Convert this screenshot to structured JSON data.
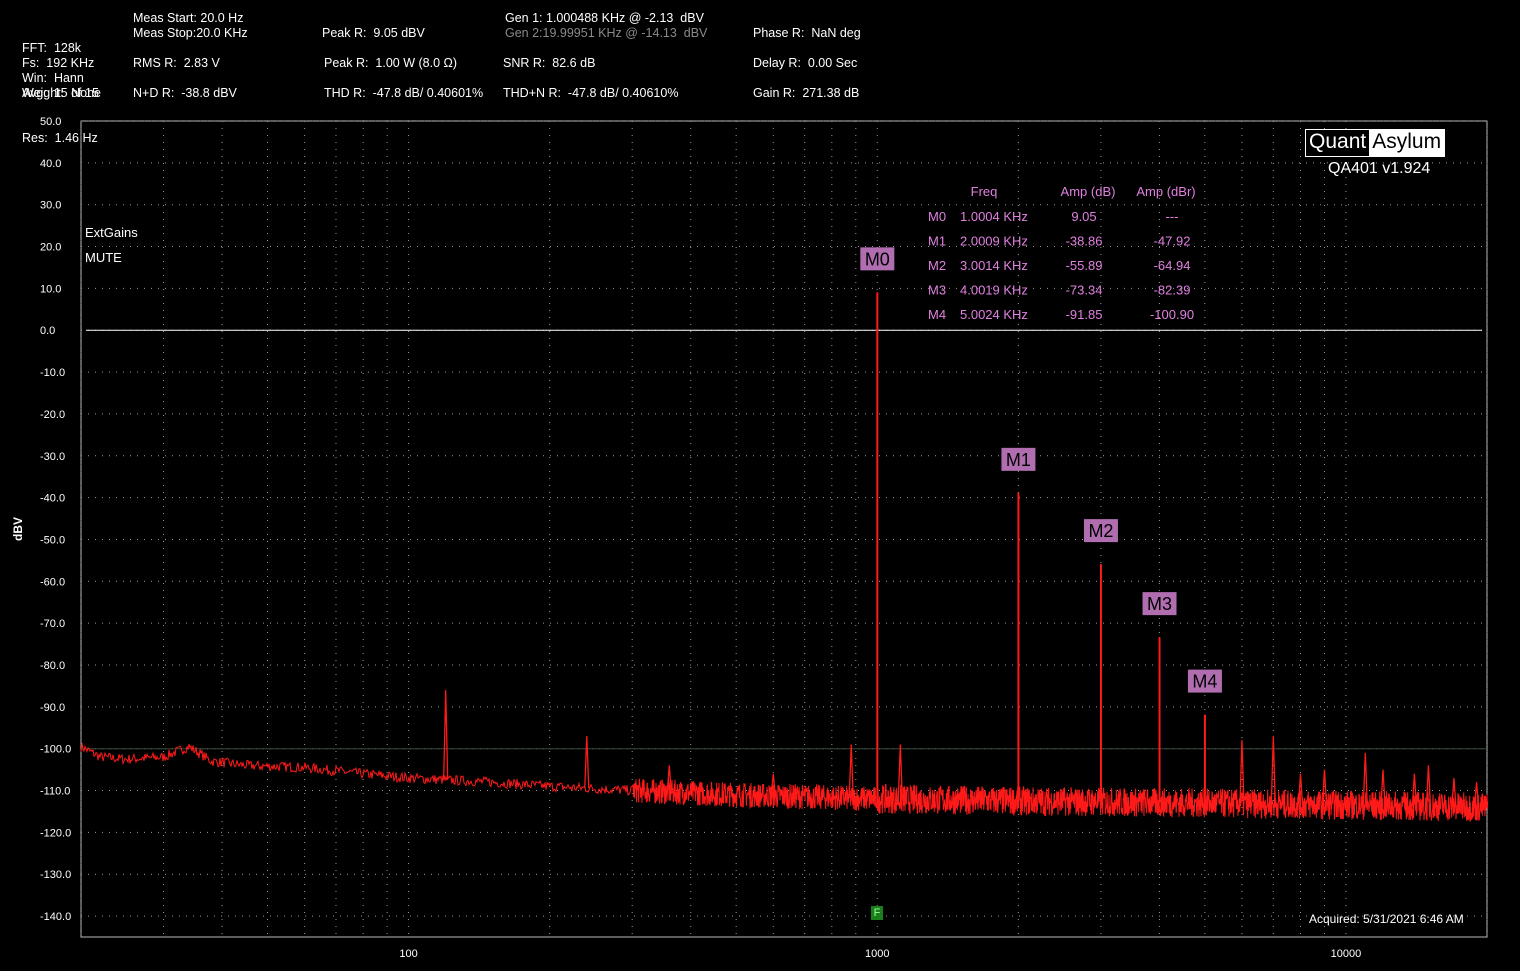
{
  "header": {
    "col1": [
      "FFT:  128k",
      "Avg:  15 of 15",
      "Res:  1.46 Hz",
      "Fs:  192 KHz",
      "Win:  Hann",
      "Weight:  None"
    ],
    "col2": [
      "Meas Start: 20.0 Hz",
      "Meas Stop:20.0 KHz",
      "RMS R:  2.83 V",
      "N+D R:  -38.8 dBV"
    ],
    "col3": [
      "Peak R:  9.05 dBV",
      "Peak R:  1.00 W (8.0 Ω)",
      "THD R:  -47.8 dB/ 0.40601%"
    ],
    "col4": [
      "Gen 1: 1.000488 KHz @ -2.13  dBV",
      "Gen 2:19.99951 KHz @ -14.13  dBV",
      "SNR R:  82.6 dB",
      "THD+N R:  -47.8 dB/ 0.40610%"
    ],
    "col5": [
      "Phase R:  NaN deg",
      "Delay R:  0.00 Sec",
      "Gain R:  271.38 dB"
    ]
  },
  "brand": {
    "part1": "Quant",
    "part2": "Asylum",
    "version": "QA401 v1.924"
  },
  "acquired": "Acquired:  5/31/2021  6:46 AM",
  "overlay_labels": [
    "ExtGains",
    "MUTE"
  ],
  "flag_label": "F",
  "colors": {
    "trace": "#ff1a1a",
    "marker_label_bg": "#b06db0",
    "marker_table": "#e080e0",
    "grid": "#9a9a9a"
  },
  "marker_table": {
    "headers": [
      "Freq",
      "Amp (dB)",
      "Amp (dBr)"
    ],
    "rows": [
      {
        "id": "M0",
        "freq": "1.0004 KHz",
        "amp": "9.05",
        "ampr": "---"
      },
      {
        "id": "M1",
        "freq": "2.0009 KHz",
        "amp": "-38.86",
        "ampr": "-47.92"
      },
      {
        "id": "M2",
        "freq": "3.0014 KHz",
        "amp": "-55.89",
        "ampr": "-64.94"
      },
      {
        "id": "M3",
        "freq": "4.0019 KHz",
        "amp": "-73.34",
        "ampr": "-82.39"
      },
      {
        "id": "M4",
        "freq": "5.0024 KHz",
        "amp": "-91.85",
        "ampr": "-100.90"
      }
    ]
  },
  "chart_data": {
    "type": "line",
    "xscale": "log",
    "xlim": [
      20,
      20000
    ],
    "ylim": [
      -145,
      50
    ],
    "ylabel": "dBV",
    "xticks": [
      100,
      1000,
      10000
    ],
    "xtick_labels": [
      "100",
      "1000",
      "10000"
    ],
    "yticks": [
      50,
      40,
      30,
      20,
      10,
      0,
      -10,
      -20,
      -30,
      -40,
      -50,
      -60,
      -70,
      -80,
      -90,
      -100,
      -110,
      -120,
      -130,
      -140
    ],
    "ytick_labels": [
      "50.0",
      "40.0",
      "30.0",
      "20.0",
      "10.0",
      "0.0",
      "-10.0",
      "-20.0",
      "-30.0",
      "-40.0",
      "-50.0",
      "-60.0",
      "-70.0",
      "-80.0",
      "-90.0",
      "-100.0",
      "-110.0",
      "-120.0",
      "-130.0",
      "-140.0"
    ],
    "grid": true,
    "reference_lines": [
      0,
      -100
    ],
    "markers": [
      {
        "name": "M0",
        "x": 1000.4,
        "y": 9.05
      },
      {
        "name": "M1",
        "x": 2000.9,
        "y": -38.86
      },
      {
        "name": "M2",
        "x": 3001.4,
        "y": -55.89
      },
      {
        "name": "M3",
        "x": 4001.9,
        "y": -73.34
      },
      {
        "name": "M4",
        "x": 5002.4,
        "y": -91.85
      }
    ],
    "floor": [
      {
        "x": 20,
        "y": -99.5
      },
      {
        "x": 22,
        "y": -102
      },
      {
        "x": 25,
        "y": -102.5
      },
      {
        "x": 30,
        "y": -102
      },
      {
        "x": 34,
        "y": -99.5
      },
      {
        "x": 38,
        "y": -103
      },
      {
        "x": 45,
        "y": -104
      },
      {
        "x": 60,
        "y": -104.5
      },
      {
        "x": 80,
        "y": -106
      },
      {
        "x": 100,
        "y": -107
      },
      {
        "x": 150,
        "y": -108
      },
      {
        "x": 200,
        "y": -109
      },
      {
        "x": 300,
        "y": -110
      },
      {
        "x": 500,
        "y": -111
      },
      {
        "x": 1000,
        "y": -112
      },
      {
        "x": 2000,
        "y": -112.5
      },
      {
        "x": 5000,
        "y": -113
      },
      {
        "x": 10000,
        "y": -113.5
      },
      {
        "x": 20000,
        "y": -114
      }
    ],
    "spurs": [
      {
        "x": 120,
        "y": -86
      },
      {
        "x": 240,
        "y": -97
      },
      {
        "x": 360,
        "y": -104
      },
      {
        "x": 600,
        "y": -106
      },
      {
        "x": 880,
        "y": -99
      },
      {
        "x": 1120,
        "y": -99
      },
      {
        "x": 6000,
        "y": -98
      },
      {
        "x": 7000,
        "y": -97
      },
      {
        "x": 8000,
        "y": -106
      },
      {
        "x": 9000,
        "y": -105
      },
      {
        "x": 11000,
        "y": -101
      },
      {
        "x": 12000,
        "y": -105
      },
      {
        "x": 14000,
        "y": -106
      },
      {
        "x": 15000,
        "y": -104
      },
      {
        "x": 17000,
        "y": -107
      },
      {
        "x": 19000,
        "y": -108
      }
    ]
  }
}
